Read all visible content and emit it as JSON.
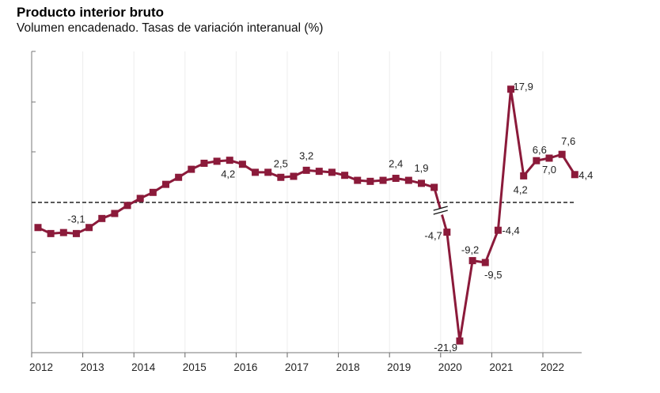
{
  "title": "Producto interior bruto",
  "subtitle": "Volumen encadenado. Tasas de variación interanual (%)",
  "chart_data": {
    "type": "line",
    "title": "Producto interior bruto",
    "subtitle": "Volumen encadenado. Tasas de variación interanual (%)",
    "xlabel": "",
    "ylabel": "",
    "x_tick_labels": [
      "2012",
      "2013",
      "2014",
      "2015",
      "2016",
      "2017",
      "2018",
      "2019",
      "2020",
      "2021",
      "2022"
    ],
    "y_axis_break": "scale break between 2019 Q4 and 2020 Q1 (compressed scale from 2020)",
    "reference_line": 0,
    "grid": "vertical year gridlines",
    "legend": "none",
    "series_color": "#8b1a3a",
    "x": [
      "2012Q1",
      "2012Q2",
      "2012Q3",
      "2012Q4",
      "2013Q1",
      "2013Q2",
      "2013Q3",
      "2013Q4",
      "2014Q1",
      "2014Q2",
      "2014Q3",
      "2014Q4",
      "2015Q1",
      "2015Q2",
      "2015Q3",
      "2015Q4",
      "2016Q1",
      "2016Q2",
      "2016Q3",
      "2016Q4",
      "2017Q1",
      "2017Q2",
      "2017Q3",
      "2017Q4",
      "2018Q1",
      "2018Q2",
      "2018Q3",
      "2018Q4",
      "2019Q1",
      "2019Q2",
      "2019Q3",
      "2019Q4",
      "2020Q1",
      "2020Q2",
      "2020Q3",
      "2020Q4",
      "2021Q1",
      "2021Q2",
      "2021Q3",
      "2021Q4",
      "2022Q1",
      "2022Q2",
      "2022Q3"
    ],
    "values": [
      -2.5,
      -3.1,
      -3.0,
      -3.1,
      -2.5,
      -1.6,
      -1.1,
      -0.3,
      0.4,
      1.0,
      1.8,
      2.5,
      3.3,
      3.9,
      4.1,
      4.2,
      3.8,
      3.0,
      3.0,
      2.5,
      2.6,
      3.2,
      3.1,
      3.0,
      2.7,
      2.2,
      2.1,
      2.2,
      2.4,
      2.2,
      1.9,
      1.5,
      -4.7,
      -21.9,
      -9.2,
      -9.5,
      -4.4,
      17.9,
      4.2,
      6.6,
      7.0,
      7.6,
      4.4
    ],
    "data_labels": [
      {
        "x": "2012Q4",
        "text": "-3,1"
      },
      {
        "x": "2015Q4",
        "text": "4,2"
      },
      {
        "x": "2016Q4",
        "text": "2,5"
      },
      {
        "x": "2017Q2",
        "text": "3,2"
      },
      {
        "x": "2019Q1",
        "text": "2,4"
      },
      {
        "x": "2019Q3",
        "text": "1,9"
      },
      {
        "x": "2020Q1",
        "text": "-4,7"
      },
      {
        "x": "2020Q2",
        "text": "-21,9"
      },
      {
        "x": "2020Q3",
        "text": "-9,2"
      },
      {
        "x": "2020Q4",
        "text": "-9,5"
      },
      {
        "x": "2021Q1",
        "text": "-4,4"
      },
      {
        "x": "2021Q2",
        "text": "17,9"
      },
      {
        "x": "2021Q3",
        "text": "4,2"
      },
      {
        "x": "2021Q4",
        "text": "6,6"
      },
      {
        "x": "2022Q1",
        "text": "7,0"
      },
      {
        "x": "2022Q2",
        "text": "7,6"
      },
      {
        "x": "2022Q3",
        "text": "4,4"
      }
    ]
  }
}
